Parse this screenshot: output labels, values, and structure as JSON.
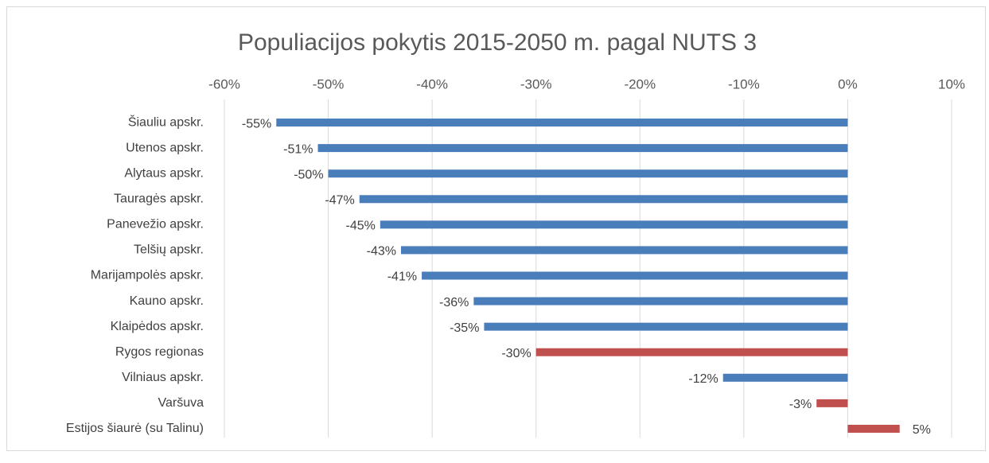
{
  "chart_data": {
    "type": "barh",
    "title": "Populiacijos pokytis 2015-2050 m. pagal NUTS 3",
    "categories": [
      "Šiauliu apskr.",
      "Utenos apskr.",
      "Alytaus apskr.",
      "Tauragės apskr.",
      "Panevežio apskr.",
      "Telšių apskr.",
      "Marijampolės apskr.",
      "Kauno apskr.",
      "Klaipėdos apskr.",
      "Rygos regionas",
      "Vilniaus apskr.",
      "Varšuva",
      "Estijos šiaurė (su Talinu)"
    ],
    "values": [
      -55,
      -51,
      -50,
      -47,
      -45,
      -43,
      -41,
      -36,
      -35,
      -30,
      -12,
      -3,
      5
    ],
    "value_labels": [
      "-55%",
      "-51%",
      "-50%",
      "-47%",
      "-45%",
      "-43%",
      "-41%",
      "-36%",
      "-35%",
      "-30%",
      "-12%",
      "-3%",
      "5%"
    ],
    "colors": [
      "#4a7ebb",
      "#4a7ebb",
      "#4a7ebb",
      "#4a7ebb",
      "#4a7ebb",
      "#4a7ebb",
      "#4a7ebb",
      "#4a7ebb",
      "#4a7ebb",
      "#c0504d",
      "#4a7ebb",
      "#c0504d",
      "#c0504d"
    ],
    "xlim": [
      -60,
      10
    ],
    "xticks": [
      {
        "value": -60,
        "label": "-60%"
      },
      {
        "value": -50,
        "label": "-50%"
      },
      {
        "value": -40,
        "label": "-40%"
      },
      {
        "value": -30,
        "label": "-30%"
      },
      {
        "value": -20,
        "label": "-20%"
      },
      {
        "value": -10,
        "label": "-10%"
      },
      {
        "value": 0,
        "label": "0%"
      },
      {
        "value": 10,
        "label": "10%"
      }
    ],
    "grid": true
  }
}
